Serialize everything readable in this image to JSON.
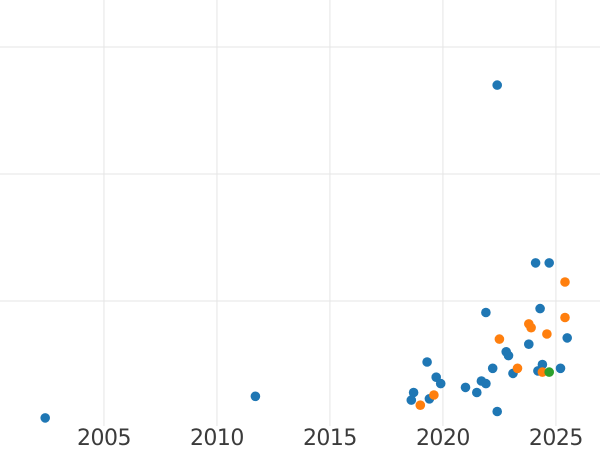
{
  "chart_data": {
    "type": "scatter",
    "title": "",
    "xlabel": "",
    "ylabel": "",
    "grid": true,
    "legend": "none",
    "background_color": "#ffffff",
    "grid_color": "#e5e5e5",
    "tick_label_color": "#3b3b3b",
    "marker_radius": 4.8,
    "x_tick_labels": [
      "2005",
      "2010",
      "2015",
      "2020",
      "2025"
    ],
    "x_tick_values": [
      2005,
      2010,
      2015,
      2020,
      2025
    ],
    "xlim": [
      2000.4,
      2026.95
    ],
    "ylim": [
      0.016,
      3.37
    ],
    "y_gridline_values": [
      1,
      2,
      3
    ],
    "series": [
      {
        "name": "series-blue",
        "color": "#1f77b4",
        "points": [
          [
            2002.4,
            0.08
          ],
          [
            2011.7,
            0.25
          ],
          [
            2022.4,
            2.7
          ],
          [
            2024.1,
            1.3
          ],
          [
            2024.7,
            1.3
          ],
          [
            2021.9,
            0.91
          ],
          [
            2024.3,
            0.94
          ],
          [
            2025.5,
            0.71
          ],
          [
            2023.8,
            0.66
          ],
          [
            2022.8,
            0.6
          ],
          [
            2022.9,
            0.57
          ],
          [
            2019.3,
            0.52
          ],
          [
            2022.2,
            0.47
          ],
          [
            2023.1,
            0.43
          ],
          [
            2024.4,
            0.5
          ],
          [
            2024.2,
            0.45
          ],
          [
            2025.2,
            0.47
          ],
          [
            2019.7,
            0.4
          ],
          [
            2019.9,
            0.35
          ],
          [
            2018.7,
            0.28
          ],
          [
            2018.6,
            0.22
          ],
          [
            2019.4,
            0.23
          ],
          [
            2021.0,
            0.32
          ],
          [
            2021.5,
            0.28
          ],
          [
            2021.7,
            0.37
          ],
          [
            2021.9,
            0.35
          ],
          [
            2022.4,
            0.13
          ]
        ]
      },
      {
        "name": "series-orange",
        "color": "#ff7f0e",
        "points": [
          [
            2025.4,
            1.15
          ],
          [
            2025.4,
            0.87
          ],
          [
            2023.8,
            0.82
          ],
          [
            2023.9,
            0.79
          ],
          [
            2022.5,
            0.7
          ],
          [
            2024.6,
            0.74
          ],
          [
            2023.3,
            0.47
          ],
          [
            2024.4,
            0.44
          ],
          [
            2019.6,
            0.26
          ],
          [
            2019.0,
            0.18
          ]
        ]
      },
      {
        "name": "series-green",
        "color": "#2ca02c",
        "points": [
          [
            2024.7,
            0.44
          ]
        ]
      }
    ]
  }
}
